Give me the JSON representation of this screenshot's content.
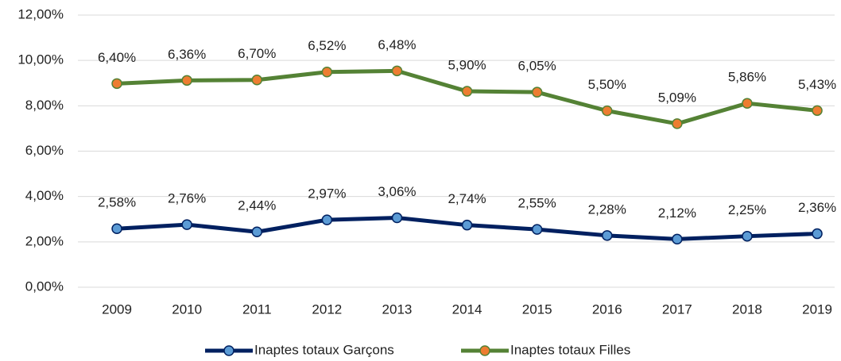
{
  "chart_data": {
    "type": "line",
    "stacked": true,
    "categories": [
      "2009",
      "2010",
      "2011",
      "2012",
      "2013",
      "2014",
      "2015",
      "2016",
      "2017",
      "2018",
      "2019"
    ],
    "series": [
      {
        "name": "Inaptes totaux Garçons",
        "color": "#002060",
        "marker_color": "#5b9bd5",
        "values": [
          2.58,
          2.76,
          2.44,
          2.97,
          3.06,
          2.74,
          2.55,
          2.28,
          2.12,
          2.25,
          2.36
        ],
        "value_labels": [
          "2,58%",
          "2,76%",
          "2,44%",
          "2,97%",
          "3,06%",
          "2,74%",
          "2,55%",
          "2,28%",
          "2,12%",
          "2,25%",
          "2,36%"
        ]
      },
      {
        "name": "Inaptes totaux Filles",
        "color": "#548235",
        "marker_color": "#ed7d31",
        "values": [
          6.4,
          6.36,
          6.7,
          6.52,
          6.48,
          5.9,
          6.05,
          5.5,
          5.09,
          5.86,
          5.43
        ],
        "value_labels": [
          "6,40%",
          "6,36%",
          "6,70%",
          "6,52%",
          "6,48%",
          "5,90%",
          "6,05%",
          "5,50%",
          "5,09%",
          "5,86%",
          "5,43%"
        ]
      }
    ],
    "ylim": [
      0,
      12
    ],
    "yticks": [
      {
        "value": 0,
        "label": "0,00%"
      },
      {
        "value": 2,
        "label": "2,00%"
      },
      {
        "value": 4,
        "label": "4,00%"
      },
      {
        "value": 6,
        "label": "6,00%"
      },
      {
        "value": 8,
        "label": "8,00%"
      },
      {
        "value": 10,
        "label": "10,00%"
      },
      {
        "value": 12,
        "label": "12,00%"
      }
    ],
    "grid": true,
    "legend": "bottom"
  }
}
